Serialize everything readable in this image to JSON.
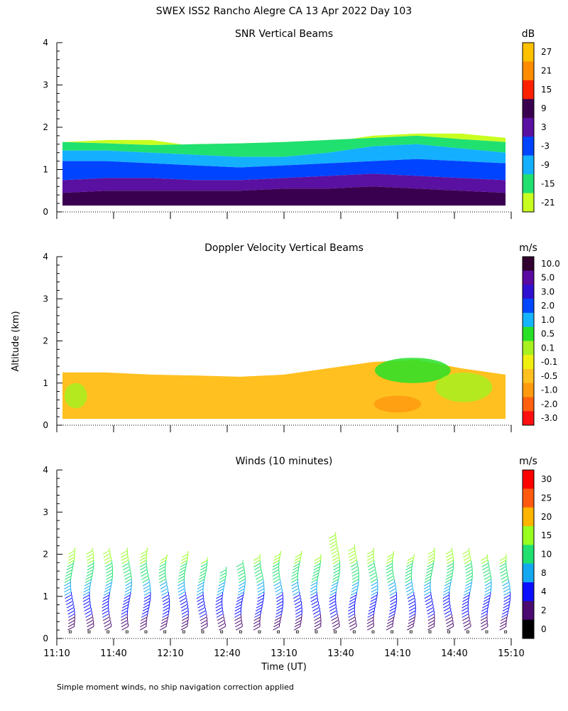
{
  "figure_title": "SWEX ISS2 Rancho Alegre CA  13 Apr 2022 Day 103",
  "y_axis_label": "Altitude (km)",
  "x_axis_label": "Time (UT)",
  "footnote": "Simple moment winds, no ship navigation correction applied",
  "chart_data": [
    {
      "type": "heatmap",
      "name": "snr",
      "title": "SNR Vertical Beams",
      "xlabel": "Time (UT)",
      "ylabel": "Altitude (km)",
      "ylim": [
        0,
        4
      ],
      "y_ticks": [
        "0",
        "1",
        "2",
        "3",
        "4"
      ],
      "x_ticks": [
        "11:10",
        "11:40",
        "12:10",
        "12:40",
        "13:10",
        "13:40",
        "14:10",
        "14:40",
        "15:10"
      ],
      "x_range_minutes": [
        0,
        240
      ],
      "colorbar": {
        "unit": "dB",
        "labels": [
          "27",
          "21",
          "15",
          "9",
          "3",
          "-3",
          "-9",
          "-15",
          "-21"
        ],
        "colors": [
          "#ffc000",
          "#ff8c00",
          "#ff2000",
          "#3a0050",
          "#5a10a0",
          "#0044ff",
          "#14b0ff",
          "#20e070",
          "#c8ff20"
        ]
      },
      "layers": [
        {
          "label": "-21 to -15 dB",
          "color": "#c8ff20",
          "base_km": [
            1.65,
            1.62,
            1.58,
            1.6,
            1.62,
            1.65,
            1.7,
            1.75,
            1.8,
            1.72,
            1.65
          ],
          "top_km": [
            1.65,
            1.7,
            1.7,
            1.55,
            1.5,
            1.55,
            1.65,
            1.8,
            1.85,
            1.85,
            1.75
          ]
        },
        {
          "label": "-15 to -9 dB",
          "color": "#20e070",
          "base_km": [
            1.45,
            1.45,
            1.4,
            1.35,
            1.3,
            1.3,
            1.4,
            1.55,
            1.6,
            1.5,
            1.4
          ],
          "top_km": [
            1.65,
            1.62,
            1.58,
            1.6,
            1.62,
            1.65,
            1.7,
            1.75,
            1.8,
            1.72,
            1.65
          ]
        },
        {
          "label": "-9 to -3 dB",
          "color": "#14b0ff",
          "base_km": [
            1.2,
            1.2,
            1.15,
            1.1,
            1.05,
            1.1,
            1.15,
            1.2,
            1.25,
            1.2,
            1.15
          ],
          "top_km": [
            1.45,
            1.45,
            1.4,
            1.35,
            1.3,
            1.3,
            1.4,
            1.55,
            1.6,
            1.5,
            1.4
          ]
        },
        {
          "label": "-3 to 3 dB",
          "color": "#0044ff",
          "base_km": [
            0.75,
            0.8,
            0.8,
            0.75,
            0.75,
            0.8,
            0.85,
            0.9,
            0.85,
            0.8,
            0.75
          ],
          "top_km": [
            1.2,
            1.2,
            1.15,
            1.1,
            1.05,
            1.1,
            1.15,
            1.2,
            1.25,
            1.2,
            1.15
          ]
        },
        {
          "label": "3 to 9 dB",
          "color": "#5a10a0",
          "base_km": [
            0.45,
            0.5,
            0.5,
            0.5,
            0.5,
            0.55,
            0.55,
            0.6,
            0.55,
            0.5,
            0.45
          ],
          "top_km": [
            0.75,
            0.8,
            0.8,
            0.75,
            0.75,
            0.8,
            0.85,
            0.9,
            0.85,
            0.8,
            0.75
          ]
        },
        {
          "label": "9 to 15 dB",
          "color": "#3a0050",
          "base_km": [
            0.15,
            0.15,
            0.15,
            0.15,
            0.15,
            0.15,
            0.15,
            0.15,
            0.15,
            0.15,
            0.15
          ],
          "top_km": [
            0.45,
            0.5,
            0.5,
            0.5,
            0.5,
            0.55,
            0.55,
            0.6,
            0.55,
            0.5,
            0.45
          ]
        }
      ],
      "data_extent_minutes": [
        3,
        237
      ]
    },
    {
      "type": "heatmap",
      "name": "doppler",
      "title": "Doppler Velocity Vertical Beams",
      "xlabel": "Time (UT)",
      "ylabel": "Altitude (km)",
      "ylim": [
        0,
        4
      ],
      "y_ticks": [
        "0",
        "1",
        "2",
        "3",
        "4"
      ],
      "x_ticks": [
        "11:10",
        "11:40",
        "12:10",
        "12:40",
        "13:10",
        "13:40",
        "14:10",
        "14:40",
        "15:10"
      ],
      "x_range_minutes": [
        0,
        240
      ],
      "colorbar": {
        "unit": "m/s",
        "labels": [
          "10.0",
          "5.0",
          "3.0",
          "2.0",
          "1.0",
          "0.5",
          "0.1",
          "-0.1",
          "-0.5",
          "-1.0",
          "-2.0",
          "-3.0"
        ],
        "colors": [
          "#300030",
          "#5a0aa0",
          "#3010d0",
          "#0048ff",
          "#14b4ff",
          "#28e028",
          "#a8f020",
          "#f0f010",
          "#ffc020",
          "#ff9a10",
          "#ff6010",
          "#ff1010"
        ]
      },
      "layers": [
        {
          "label": "-1.0 to -0.5 m/s",
          "color": "#ffc020",
          "base_km": [
            0.15,
            0.15,
            0.15,
            0.15,
            0.15,
            0.15,
            0.15,
            0.15,
            0.15,
            0.15,
            0.15
          ],
          "top_km": [
            1.25,
            1.25,
            1.2,
            1.18,
            1.15,
            1.2,
            1.35,
            1.5,
            1.55,
            1.35,
            1.2
          ]
        }
      ],
      "patches": [
        {
          "label": "0.1 to -0.1 m/s",
          "color": "#a8f020",
          "center_minutes": [
            10,
            0.7
          ],
          "size": [
            12,
            0.6
          ]
        },
        {
          "label": "0.5 to 0.1 m/s",
          "color": "#28e028",
          "center_minutes": [
            188,
            1.3
          ],
          "size": [
            40,
            0.6
          ]
        },
        {
          "label": "0.1 to -0.1 m/s",
          "color": "#a8f020",
          "center_minutes": [
            215,
            0.9
          ],
          "size": [
            30,
            0.7
          ]
        },
        {
          "label": "-2.0 to -1.0 m/s",
          "color": "#ff9a10",
          "center_minutes": [
            180,
            0.5
          ],
          "size": [
            25,
            0.4
          ]
        }
      ],
      "data_extent_minutes": [
        3,
        237
      ]
    },
    {
      "type": "scatter",
      "name": "winds",
      "title": "Winds (10 minutes)",
      "xlabel": "Time (UT)",
      "ylabel": "Altitude (km)",
      "ylim": [
        0,
        4
      ],
      "y_ticks": [
        "0",
        "1",
        "2",
        "3",
        "4"
      ],
      "x_ticks": [
        "11:10",
        "11:40",
        "12:10",
        "12:40",
        "13:10",
        "13:40",
        "14:10",
        "14:40",
        "15:10"
      ],
      "x_range_minutes": [
        0,
        240
      ],
      "colorbar": {
        "unit": "m/s",
        "labels": [
          "30",
          "25",
          "20",
          "15",
          "10",
          "8",
          "4",
          "2",
          "0"
        ],
        "colors": [
          "#ff0000",
          "#ff5a10",
          "#ffb400",
          "#98ff20",
          "#20e070",
          "#14a8f0",
          "#0a10ff",
          "#4a0a70",
          "#000000"
        ]
      },
      "profile_times_minutes": [
        5,
        15,
        25,
        35,
        45,
        55,
        65,
        75,
        85,
        95,
        105,
        115,
        125,
        135,
        145,
        155,
        165,
        175,
        185,
        195,
        205,
        215,
        225,
        235
      ],
      "profile_top_km": [
        2.05,
        2.0,
        2.0,
        2.0,
        2.0,
        1.9,
        1.95,
        1.8,
        1.6,
        1.7,
        1.85,
        1.95,
        1.95,
        1.85,
        2.4,
        2.1,
        2.05,
        1.95,
        1.9,
        2.0,
        2.05,
        2.0,
        1.85,
        1.9
      ],
      "barb_spacing_km": 0.075
    }
  ]
}
